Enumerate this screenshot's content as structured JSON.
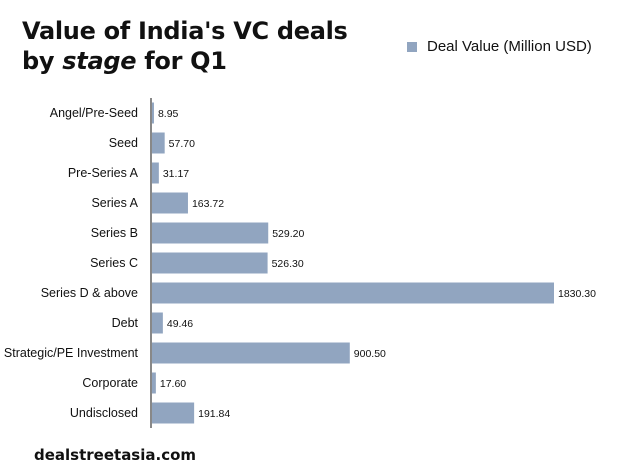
{
  "title": {
    "line1": "Value of India's VC deals",
    "line2_prefix": "by ",
    "line2_em": "stage",
    "line2_suffix": " for Q1"
  },
  "source": "dealstreetasia.com",
  "colors": {
    "bar": "#91a5c0",
    "axis": "#111111"
  },
  "chart_data": {
    "type": "bar",
    "orientation": "horizontal",
    "title": "Value of India's VC deals by stage for Q1",
    "legend": "Deal Value (Million USD)",
    "legend_position": "top-right",
    "categories": [
      "Angel/Pre-Seed",
      "Seed",
      "Pre-Series A",
      "Series A",
      "Series B",
      "Series C",
      "Series D & above",
      "Debt",
      "Strategic/PE Investment",
      "Corporate",
      "Undisclosed"
    ],
    "values": [
      8.95,
      57.7,
      31.17,
      163.72,
      529.2,
      526.3,
      1830.3,
      49.46,
      900.5,
      17.6,
      191.84
    ],
    "value_labels": [
      "8.95",
      "57.70",
      "31.17",
      "163.72",
      "529.20",
      "526.30",
      "1830.30",
      "49.46",
      "900.50",
      "17.60",
      "191.84"
    ],
    "xlim": [
      0,
      1830.3
    ],
    "xlabel": "",
    "ylabel": "",
    "grid": false
  }
}
